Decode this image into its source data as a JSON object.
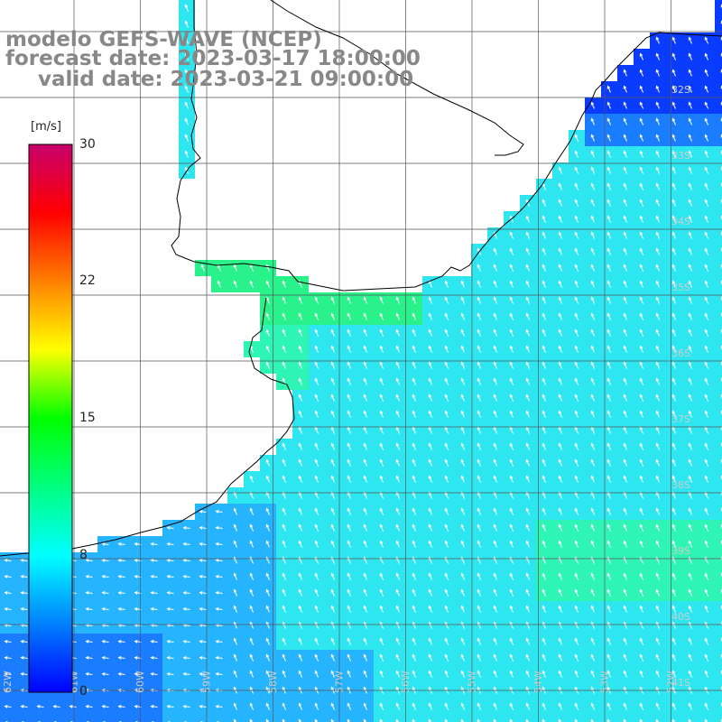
{
  "header": {
    "model": "modelo GEFS-WAVE (NCEP)",
    "forecast": "forecast date: 2023-03-17 18:00:00",
    "valid": "valid date: 2023-03-21 09:00:00"
  },
  "colorbar": {
    "unit": "[m/s]",
    "ticks": [
      "30",
      "22",
      "15",
      "8",
      "0"
    ],
    "colors": [
      "#0000ff",
      "#0080ff",
      "#00ffff",
      "#00ff80",
      "#00ff00",
      "#ffff00",
      "#ff8000",
      "#ff0000",
      "#c8006e"
    ]
  },
  "map": {
    "lat_labels": [
      "32S",
      "33S",
      "34S",
      "35S",
      "36S",
      "37S",
      "38S",
      "39S",
      "40S",
      "41S"
    ],
    "lon_labels": [
      "62W",
      "61W",
      "60W",
      "59W",
      "58W",
      "57W",
      "56W",
      "55W",
      "54W",
      "53W",
      "52W"
    ],
    "colors": {
      "deep_blue": "#0a3cff",
      "blue": "#1a7dff",
      "light_blue": "#27b4ff",
      "cyan": "#2ee6f0",
      "aqua_green": "#2ef5b4",
      "green": "#29f28a",
      "land": "#ffffff",
      "coast": "#000000",
      "grid": "#555555"
    },
    "wind_direction": "arrows pointing northwest toward coast"
  }
}
